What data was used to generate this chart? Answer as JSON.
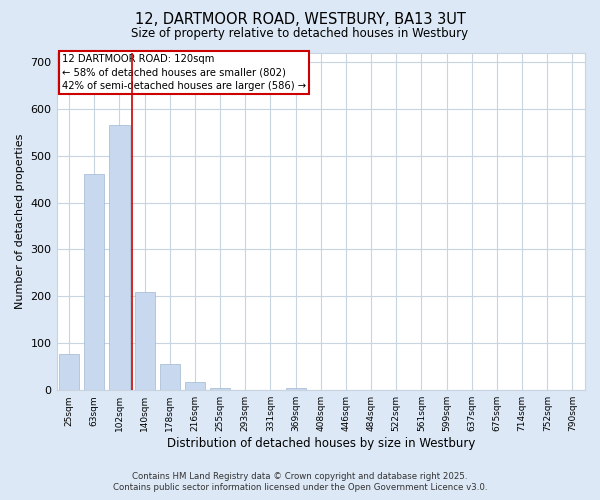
{
  "title_line1": "12, DARTMOOR ROAD, WESTBURY, BA13 3UT",
  "title_line2": "Size of property relative to detached houses in Westbury",
  "xlabel": "Distribution of detached houses by size in Westbury",
  "ylabel": "Number of detached properties",
  "categories": [
    "25sqm",
    "63sqm",
    "102sqm",
    "140sqm",
    "178sqm",
    "216sqm",
    "255sqm",
    "293sqm",
    "331sqm",
    "369sqm",
    "408sqm",
    "446sqm",
    "484sqm",
    "522sqm",
    "561sqm",
    "599sqm",
    "637sqm",
    "675sqm",
    "714sqm",
    "752sqm",
    "790sqm"
  ],
  "values": [
    78,
    460,
    565,
    210,
    55,
    18,
    5,
    0,
    0,
    5,
    0,
    0,
    0,
    0,
    0,
    0,
    0,
    0,
    0,
    0,
    0
  ],
  "bar_color": "#c8d8ee",
  "bar_edge_color": "#a0b8d0",
  "vline_x": 2.5,
  "vline_color": "#cc0000",
  "annotation_box_text": "12 DARTMOOR ROAD: 120sqm\n← 58% of detached houses are smaller (802)\n42% of semi-detached houses are larger (586) →",
  "box_edge_color": "#cc0000",
  "plot_bg_color": "#ffffff",
  "fig_bg_color": "#dce8f5",
  "grid_color": "#c8d4e0",
  "ylim": [
    0,
    720
  ],
  "yticks": [
    0,
    100,
    200,
    300,
    400,
    500,
    600,
    700
  ],
  "footer_line1": "Contains HM Land Registry data © Crown copyright and database right 2025.",
  "footer_line2": "Contains public sector information licensed under the Open Government Licence v3.0."
}
